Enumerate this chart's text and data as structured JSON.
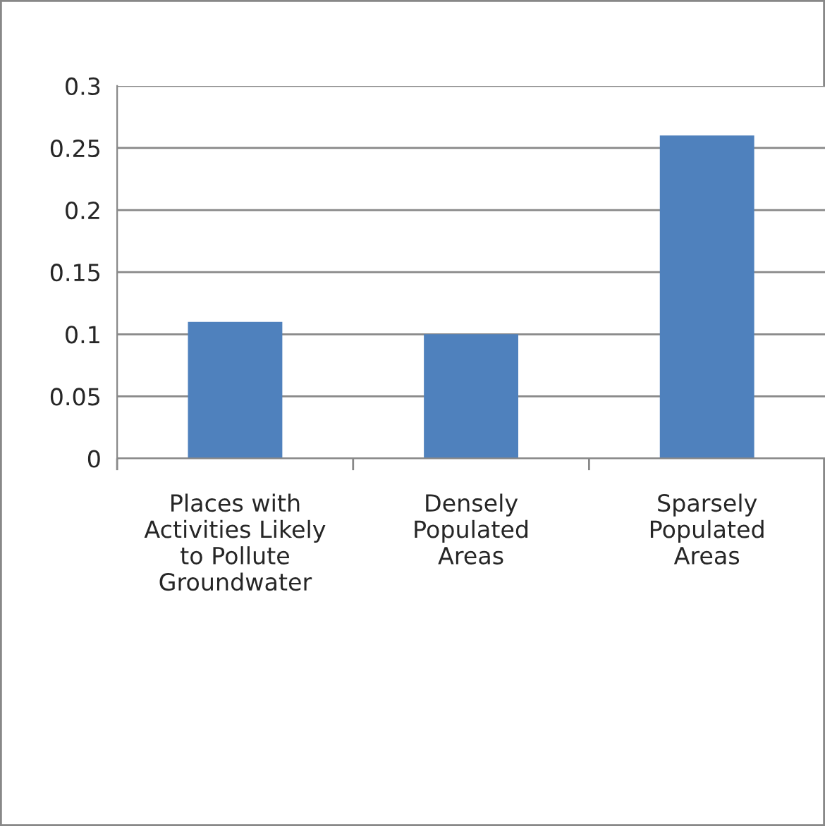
{
  "chart_data": {
    "type": "bar",
    "categories": [
      "Places with\nActivities Likely\nto Pollute\nGroundwater",
      "Densely\nPopulated\nAreas",
      "Sparsely\nPopulated\nAreas"
    ],
    "values": [
      0.11,
      0.1,
      0.26
    ],
    "color": "#4f81bd",
    "ylim": [
      0,
      0.3
    ],
    "yticks": [
      {
        "value": 0,
        "label": "0"
      },
      0.05,
      0.1,
      0.15,
      0.2,
      0.25,
      0.3
    ],
    "grid": "y",
    "legend": false
  }
}
